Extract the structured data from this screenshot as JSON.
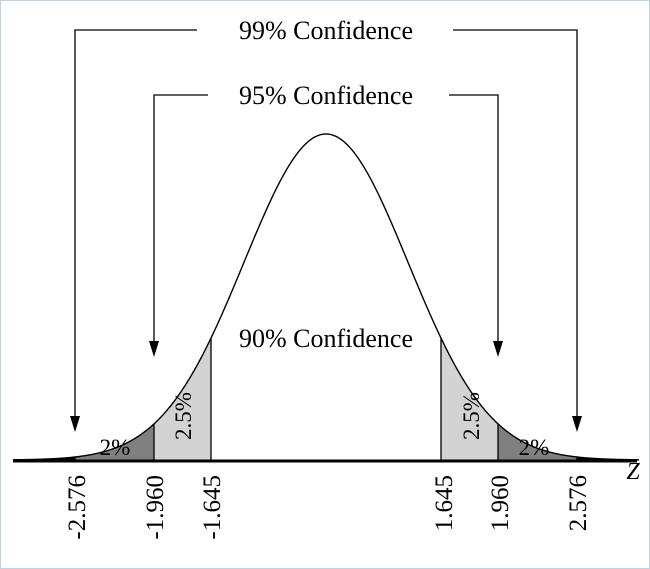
{
  "labels": {
    "ci99": "99% Confidence",
    "ci95": "95% Confidence",
    "ci90": "90% Confidence",
    "axis": "Z"
  },
  "ticks": {
    "neg2576": "-2.576",
    "neg1960": "-1.960",
    "neg1645": "-1.645",
    "pos1645": "1.645",
    "pos1960": "1.960",
    "pos2576": "2.576"
  },
  "regions": {
    "left_2": "2%",
    "left_25": "2.5%",
    "right_25": "2.5%",
    "right_2": "2%"
  },
  "colors": {
    "tail_outer": "#000000",
    "tail_dark": "#808080",
    "tail_light": "#d3d3d3",
    "frame": "#bfd1e6"
  }
}
